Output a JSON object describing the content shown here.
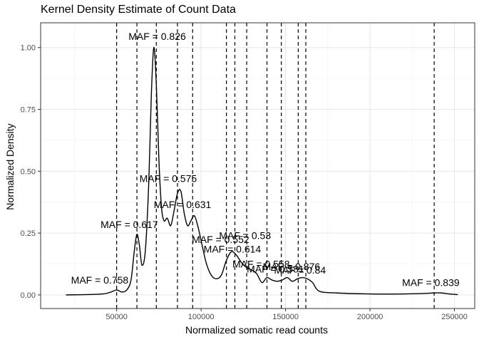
{
  "chart_data": {
    "type": "line",
    "title": "Kernel Density Estimate of Count Data",
    "xlabel": "Normalized somatic read counts",
    "ylabel": "Normalized Density",
    "xlim": [
      5000,
      262000
    ],
    "ylim": [
      -0.055,
      1.1
    ],
    "x_ticks": [
      50000,
      100000,
      150000,
      200000,
      250000
    ],
    "x_tick_labels": [
      "50000",
      "100000",
      "150000",
      "200000",
      "250000"
    ],
    "y_ticks": [
      0.0,
      0.25,
      0.5,
      0.75,
      1.0
    ],
    "y_tick_labels": [
      "0.00",
      "0.25",
      "0.50",
      "0.75",
      "1.00"
    ],
    "grid": true,
    "line_color": "#000000",
    "density_curve": {
      "x": [
        20000,
        40000,
        46000,
        50000,
        53000,
        56000,
        58500,
        60500,
        62000,
        63500,
        65000,
        67000,
        69000,
        70500,
        72000,
        73500,
        75000,
        76500,
        78000,
        80000,
        82000,
        84000,
        86000,
        88000,
        90000,
        92000,
        94000,
        96000,
        98000,
        100000,
        103000,
        106000,
        109000,
        112000,
        115000,
        118000,
        121000,
        124000,
        127000,
        130000,
        133000,
        136000,
        139000,
        142000,
        145000,
        148000,
        151000,
        154000,
        157000,
        160000,
        163000,
        166000,
        170000,
        180000,
        200000,
        220000,
        232000,
        238000,
        242000,
        247000,
        252000
      ],
      "y": [
        0.0,
        0.003,
        0.01,
        0.02,
        0.012,
        0.02,
        0.06,
        0.18,
        0.245,
        0.2,
        0.12,
        0.18,
        0.45,
        0.8,
        1.0,
        0.85,
        0.55,
        0.36,
        0.3,
        0.31,
        0.28,
        0.34,
        0.41,
        0.42,
        0.33,
        0.28,
        0.3,
        0.32,
        0.28,
        0.22,
        0.13,
        0.08,
        0.065,
        0.08,
        0.14,
        0.175,
        0.16,
        0.13,
        0.11,
        0.1,
        0.085,
        0.05,
        0.07,
        0.06,
        0.055,
        0.06,
        0.07,
        0.055,
        0.065,
        0.07,
        0.065,
        0.05,
        0.015,
        0.008,
        0.004,
        0.004,
        0.006,
        0.008,
        0.008,
        0.004,
        0.001
      ]
    },
    "vlines": [
      {
        "x": 50000,
        "label": "MAF = 0.758",
        "label_x": 40000,
        "label_y": 0.06
      },
      {
        "x": 62000,
        "label": "MAF = 0.617",
        "label_x": 57500,
        "label_y": 0.285
      },
      {
        "x": 73500,
        "label": "MAF = 0.826",
        "label_x": 74000,
        "label_y": 1.045
      },
      {
        "x": 86000,
        "label": "MAF = 0.575",
        "label_x": 80500,
        "label_y": 0.47
      },
      {
        "x": 95000,
        "label": "MAF = 0.631",
        "label_x": 89000,
        "label_y": 0.365
      },
      {
        "x": 115000,
        "label": "MAF = 0.552",
        "label_x": 111500,
        "label_y": 0.225
      },
      {
        "x": 120000,
        "label": "MAF = 0.53",
        "label_x": 126000,
        "label_y": 0.24
      },
      {
        "x": 127000,
        "label": "MAF = 0.614",
        "label_x": 118500,
        "label_y": 0.185
      },
      {
        "x": 139000,
        "label": "MAF = 0.558",
        "label_x": 135500,
        "label_y": 0.125
      },
      {
        "x": 147500,
        "label": "MAF = 0.581",
        "label_x": 144000,
        "label_y": 0.105
      },
      {
        "x": 157500,
        "label": "MAF = 0.876",
        "label_x": 153500,
        "label_y": 0.115
      },
      {
        "x": 162000,
        "label": "MAF = 0.84",
        "label_x": 158500,
        "label_y": 0.1
      },
      {
        "x": 238000,
        "label": "MAF = 0.839",
        "label_x": 236000,
        "label_y": 0.05
      }
    ]
  }
}
